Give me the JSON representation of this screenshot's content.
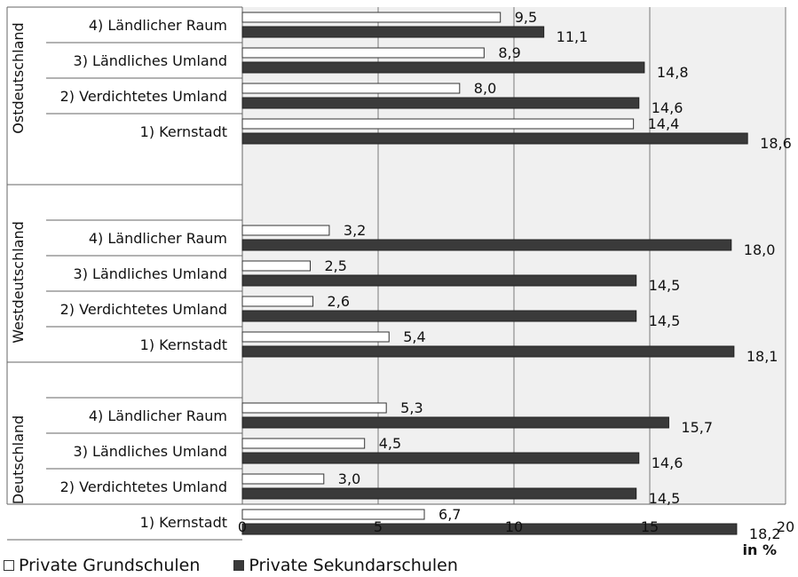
{
  "chart_data": {
    "type": "bar",
    "orientation": "horizontal",
    "xlabel": "in %",
    "xlim": [
      0,
      20
    ],
    "xticks": [
      0,
      5,
      10,
      15,
      20
    ],
    "grid": true,
    "legend_position": "bottom-left",
    "groups": [
      {
        "label": "Ostdeutschland",
        "categories": [
          "4) Ländlicher Raum",
          "3) Ländliches Umland",
          "2) Verdichtetes Umland",
          "1) Kernstadt"
        ],
        "grundschulen": [
          9.5,
          8.9,
          8.0,
          14.4
        ],
        "grundschulen_labels": [
          "9,5",
          "8,9",
          "8,0",
          "14,4"
        ],
        "sekundarschulen": [
          11.1,
          14.8,
          14.6,
          18.6
        ],
        "sekundarschulen_labels": [
          "11,1",
          "14,8",
          "14,6",
          "18,6"
        ]
      },
      {
        "label": "Westdeutschland",
        "categories": [
          "4) Ländlicher Raum",
          "3) Ländliches Umland",
          "2) Verdichtetes Umland",
          "1) Kernstadt"
        ],
        "grundschulen": [
          3.2,
          2.5,
          2.6,
          5.4
        ],
        "grundschulen_labels": [
          "3,2",
          "2,5",
          "2,6",
          "5,4"
        ],
        "sekundarschulen": [
          18.0,
          14.5,
          14.5,
          18.1
        ],
        "sekundarschulen_labels": [
          "18,0",
          "14,5",
          "14,5",
          "18,1"
        ]
      },
      {
        "label": "Deutschland",
        "categories": [
          "4) Ländlicher Raum",
          "3) Ländliches Umland",
          "2) Verdichtetes Umland",
          "1) Kernstadt"
        ],
        "grundschulen": [
          5.3,
          4.5,
          3.0,
          6.7
        ],
        "grundschulen_labels": [
          "5,3",
          "4,5",
          "3,0",
          "6,7"
        ],
        "sekundarschulen": [
          15.7,
          14.6,
          14.5,
          18.2
        ],
        "sekundarschulen_labels": [
          "15,7",
          "14,6",
          "14,5",
          "18,2"
        ]
      }
    ],
    "series": [
      {
        "name": "Private Grundschulen",
        "color": "#ffffff"
      },
      {
        "name": "Private Sekundarschulen",
        "color": "#3a3a3a"
      }
    ],
    "plot_background": "#f0f0f0"
  }
}
